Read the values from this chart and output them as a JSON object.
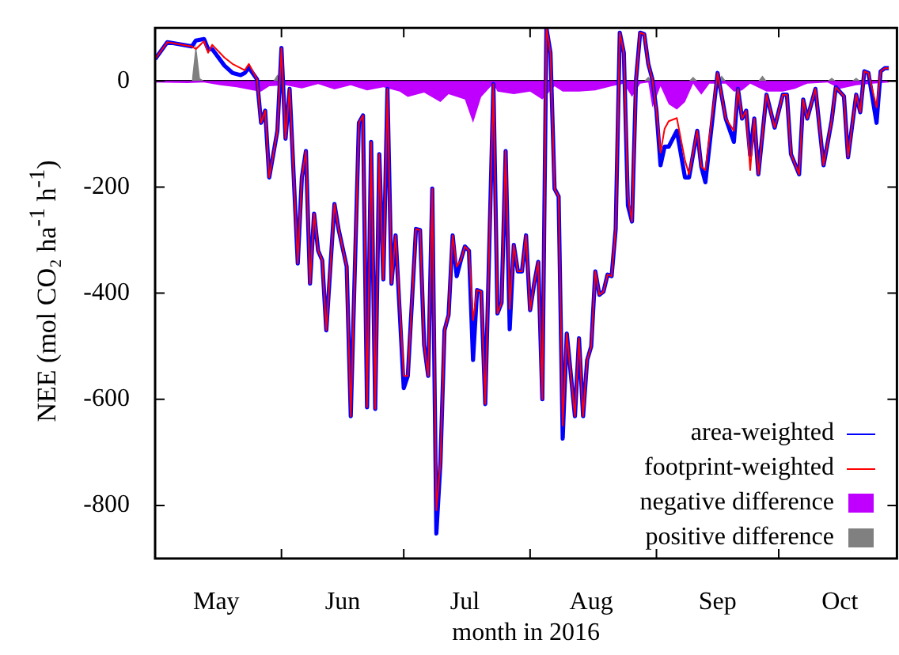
{
  "chart_data": {
    "type": "line",
    "xlabel": "month in 2016",
    "ylabel": "NEE (mol CO₂ ha$^{-1}$ h$^{-1}$)",
    "xlim": [
      "2016-05-01",
      "2016-10-30"
    ],
    "ylim": [
      -900,
      100
    ],
    "yticks": [
      -800,
      -600,
      -400,
      -200,
      0
    ],
    "xticks": [
      {
        "value": "2016-05-16",
        "label": "May"
      },
      {
        "value": "2016-06-01",
        "label": null
      },
      {
        "value": "2016-06-16",
        "label": "Jun"
      },
      {
        "value": "2016-07-01",
        "label": null
      },
      {
        "value": "2016-07-16",
        "label": "Jul"
      },
      {
        "value": "2016-08-01",
        "label": null
      },
      {
        "value": "2016-08-16",
        "label": "Aug"
      },
      {
        "value": "2016-09-01",
        "label": null
      },
      {
        "value": "2016-09-16",
        "label": "Sep"
      },
      {
        "value": "2016-10-01",
        "label": null
      },
      {
        "value": "2016-10-16",
        "label": "Oct"
      }
    ],
    "legend": "bottom right",
    "marker": "none",
    "line_style": "solid",
    "ref_lines": [
      {
        "axis": "y",
        "value": 0,
        "color": "#000000"
      }
    ],
    "x": [
      "2016-05-01",
      "2016-05-04",
      "2016-05-10",
      "2016-05-11",
      "2016-05-13",
      "2016-05-14",
      "2016-05-15",
      "2016-05-18",
      "2016-05-20",
      "2016-05-22",
      "2016-05-23",
      "2016-05-24",
      "2016-05-26",
      "2016-05-27",
      "2016-05-28",
      "2016-05-29",
      "2016-05-31",
      "2016-06-01",
      "2016-06-02",
      "2016-06-03",
      "2016-06-05",
      "2016-06-06",
      "2016-06-07",
      "2016-06-08",
      "2016-06-09",
      "2016-06-10",
      "2016-06-11",
      "2016-06-12",
      "2016-06-14",
      "2016-06-15",
      "2016-06-17",
      "2016-06-18",
      "2016-06-20",
      "2016-06-21",
      "2016-06-22",
      "2016-06-23",
      "2016-06-24",
      "2016-06-25",
      "2016-06-26",
      "2016-06-27",
      "2016-06-28",
      "2016-06-29",
      "2016-07-01",
      "2016-07-02",
      "2016-07-04",
      "2016-07-05",
      "2016-07-06",
      "2016-07-07",
      "2016-07-08",
      "2016-07-09",
      "2016-07-10",
      "2016-07-11",
      "2016-07-12",
      "2016-07-13",
      "2016-07-14",
      "2016-07-15",
      "2016-07-16",
      "2016-07-17",
      "2016-07-18",
      "2016-07-19",
      "2016-07-20",
      "2016-07-21",
      "2016-07-23",
      "2016-07-24",
      "2016-07-25",
      "2016-07-26",
      "2016-07-27",
      "2016-07-28",
      "2016-07-29",
      "2016-07-30",
      "2016-07-31",
      "2016-08-01",
      "2016-08-02",
      "2016-08-03",
      "2016-08-04",
      "2016-08-05",
      "2016-08-06",
      "2016-08-07",
      "2016-08-08",
      "2016-08-09",
      "2016-08-10",
      "2016-08-12",
      "2016-08-13",
      "2016-08-14",
      "2016-08-15",
      "2016-08-16",
      "2016-08-17",
      "2016-08-18",
      "2016-08-19",
      "2016-08-20",
      "2016-08-21",
      "2016-08-22",
      "2016-08-23",
      "2016-08-24",
      "2016-08-25",
      "2016-08-26",
      "2016-08-27",
      "2016-08-28",
      "2016-08-29",
      "2016-08-30",
      "2016-08-31",
      "2016-09-01",
      "2016-09-02",
      "2016-09-03",
      "2016-09-04",
      "2016-09-06",
      "2016-09-08",
      "2016-09-09",
      "2016-09-11",
      "2016-09-12",
      "2016-09-13",
      "2016-09-16",
      "2016-09-18",
      "2016-09-20",
      "2016-09-21",
      "2016-09-22",
      "2016-09-23",
      "2016-09-24",
      "2016-09-25",
      "2016-09-26",
      "2016-09-28",
      "2016-09-30",
      "2016-10-02",
      "2016-10-03",
      "2016-10-04",
      "2016-10-06",
      "2016-10-07",
      "2016-10-08",
      "2016-10-10",
      "2016-10-12",
      "2016-10-14",
      "2016-10-15",
      "2016-10-17",
      "2016-10-18",
      "2016-10-20",
      "2016-10-21",
      "2016-10-22",
      "2016-10-23",
      "2016-10-25",
      "2016-10-26",
      "2016-10-27",
      "2016-10-28"
    ],
    "series": [
      {
        "name": "area-weighted",
        "color": "#0000ff",
        "values": [
          41,
          73,
          65,
          76,
          79,
          60,
          60,
          29,
          15,
          11,
          15,
          25,
          3,
          -79,
          -56,
          -182,
          -94,
          62,
          -109,
          -15,
          -344,
          -182,
          -132,
          -382,
          -250,
          -320,
          -338,
          -470,
          -232,
          -279,
          -350,
          -632,
          -79,
          -65,
          -615,
          -115,
          -618,
          -138,
          -374,
          -15,
          -382,
          -291,
          -579,
          -556,
          -279,
          -281,
          -497,
          -556,
          -203,
          -853,
          -720,
          -470,
          -441,
          -291,
          -368,
          -338,
          -312,
          -320,
          -526,
          -394,
          -397,
          -609,
          -6,
          -438,
          -418,
          -132,
          -468,
          -309,
          -359,
          -359,
          -291,
          -432,
          -382,
          -341,
          -600,
          100,
          53,
          -203,
          -218,
          -674,
          -476,
          -632,
          -485,
          -632,
          -526,
          -500,
          -359,
          -403,
          -397,
          -365,
          -368,
          -279,
          91,
          53,
          -235,
          -265,
          3,
          91,
          88,
          32,
          3,
          -56,
          -159,
          -124,
          -124,
          -94,
          -182,
          -182,
          -94,
          -162,
          -191,
          15,
          -71,
          -115,
          -15,
          -71,
          -56,
          -140,
          -71,
          -176,
          -26,
          -88,
          -26,
          -26,
          -138,
          -176,
          -35,
          -71,
          -15,
          -159,
          -74,
          -12,
          -29,
          -144,
          -26,
          -59,
          18,
          15,
          -79,
          18,
          24,
          24
        ]
      },
      {
        "name": "footprint-weighted",
        "color": "#ff0000",
        "values": [
          41,
          73,
          65,
          60,
          75,
          53,
          68,
          44,
          32,
          24,
          20,
          32,
          3,
          -79,
          -56,
          -182,
          -94,
          62,
          -109,
          -15,
          -344,
          -182,
          -132,
          -382,
          -250,
          -320,
          -338,
          -470,
          -232,
          -279,
          -350,
          -632,
          -79,
          -65,
          -615,
          -115,
          -618,
          -138,
          -374,
          -15,
          -382,
          -291,
          -556,
          -556,
          -279,
          -281,
          -497,
          -556,
          -203,
          -809,
          -720,
          -470,
          -441,
          -291,
          -350,
          -338,
          -312,
          -320,
          -451,
          -394,
          -397,
          -609,
          -6,
          -438,
          -418,
          -132,
          -430,
          -309,
          -359,
          -359,
          -291,
          -432,
          -382,
          -341,
          -600,
          100,
          53,
          -203,
          -218,
          -650,
          -476,
          -632,
          -485,
          -632,
          -526,
          -500,
          -359,
          -403,
          -397,
          -365,
          -368,
          -279,
          91,
          53,
          -218,
          -265,
          3,
          91,
          88,
          32,
          3,
          -56,
          -135,
          -90,
          -76,
          -70,
          -150,
          -176,
          -94,
          -162,
          -168,
          15,
          -71,
          -94,
          -15,
          -71,
          -56,
          -168,
          -71,
          -176,
          -26,
          -88,
          -26,
          -26,
          -138,
          -176,
          -35,
          -71,
          -15,
          -159,
          -74,
          -12,
          -29,
          -144,
          -26,
          -59,
          18,
          15,
          -50,
          18,
          24,
          24
        ]
      },
      {
        "name": "negative difference",
        "type": "area",
        "color": "#bf00ff",
        "x": [
          "2016-05-01",
          "2016-05-09",
          "2016-05-13",
          "2016-05-17",
          "2016-05-21",
          "2016-05-25",
          "2016-05-27",
          "2016-05-29",
          "2016-06-02",
          "2016-06-06",
          "2016-06-10",
          "2016-06-14",
          "2016-06-18",
          "2016-06-22",
          "2016-06-26",
          "2016-06-30",
          "2016-07-02",
          "2016-07-06",
          "2016-07-10",
          "2016-07-12",
          "2016-07-16",
          "2016-07-18",
          "2016-07-20",
          "2016-07-23",
          "2016-07-24",
          "2016-07-28",
          "2016-08-01",
          "2016-08-04",
          "2016-08-07",
          "2016-08-09",
          "2016-08-13",
          "2016-08-17",
          "2016-08-21",
          "2016-08-24",
          "2016-08-26",
          "2016-08-28",
          "2016-08-30",
          "2016-08-31",
          "2016-09-02",
          "2016-09-04",
          "2016-09-06",
          "2016-09-08",
          "2016-09-10",
          "2016-09-12",
          "2016-09-14",
          "2016-09-18",
          "2016-09-20",
          "2016-09-22",
          "2016-09-24",
          "2016-09-28",
          "2016-10-02",
          "2016-10-05",
          "2016-10-08",
          "2016-10-13",
          "2016-10-16",
          "2016-10-20",
          "2016-10-24",
          "2016-10-28"
        ],
        "values": [
          -3,
          -4,
          -3,
          -8,
          -12,
          -18,
          -20,
          -10,
          -8,
          -14,
          -6,
          -16,
          -8,
          -18,
          -12,
          -20,
          -30,
          -22,
          -40,
          -25,
          -35,
          -79,
          -30,
          -5,
          -20,
          -25,
          -20,
          -35,
          -10,
          -20,
          -20,
          -18,
          -10,
          -5,
          -30,
          -5,
          -3,
          -50,
          -10,
          -44,
          -54,
          -40,
          -5,
          -26,
          -5,
          -5,
          -20,
          -18,
          -5,
          -20,
          -20,
          -15,
          -5,
          -3,
          -15,
          -8,
          -5,
          -3
        ]
      },
      {
        "name": "positive difference",
        "type": "area",
        "color": "#808080",
        "x": [
          "2016-05-10",
          "2016-05-11",
          "2016-05-12",
          "2016-05-13",
          "2016-05-30",
          "2016-05-31",
          "2016-06-01",
          "2016-08-29",
          "2016-08-30",
          "2016-08-31",
          "2016-09-09",
          "2016-09-10",
          "2016-09-11",
          "2016-09-16",
          "2016-09-17",
          "2016-09-18",
          "2016-09-26",
          "2016-09-27",
          "2016-09-28",
          "2016-10-13",
          "2016-10-14",
          "2016-10-15",
          "2016-10-19",
          "2016-10-20",
          "2016-10-21"
        ],
        "values": [
          0,
          70,
          5,
          0,
          0,
          12,
          0,
          0,
          8,
          0,
          0,
          8,
          0,
          0,
          10,
          0,
          0,
          10,
          0,
          0,
          6,
          0,
          0,
          6,
          0
        ]
      }
    ]
  }
}
